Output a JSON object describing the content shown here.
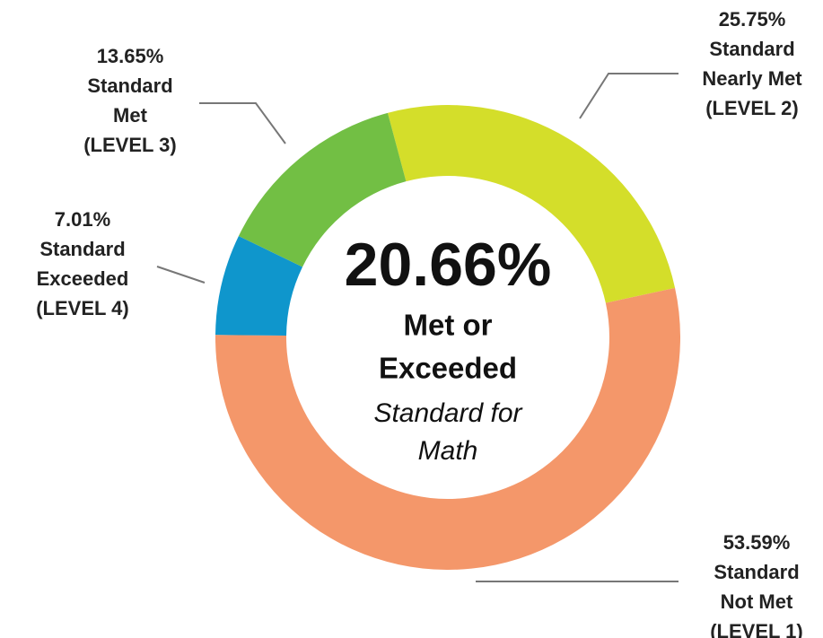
{
  "chart_data": {
    "type": "donut",
    "categories": [
      [
        "Standard",
        "Nearly Met",
        "(LEVEL 2)"
      ],
      [
        "Standard",
        "Not Met",
        "(LEVEL 1)"
      ],
      [
        "Standard",
        "Exceeded",
        "(LEVEL 4)"
      ],
      [
        "Standard",
        "Met",
        "(LEVEL 3)"
      ]
    ],
    "values": [
      25.75,
      53.59,
      7.01,
      13.65
    ],
    "value_labels": [
      "25.75%",
      "53.59%",
      "7.01%",
      "13.65%"
    ],
    "colors": [
      "#d4de2a",
      "#f4976a",
      "#0f96cc",
      "#72bf44"
    ],
    "center_text": [
      "20.66%",
      "Met or",
      "Exceeded"
    ],
    "center_subtext": [
      "Standard for",
      "Math"
    ]
  }
}
